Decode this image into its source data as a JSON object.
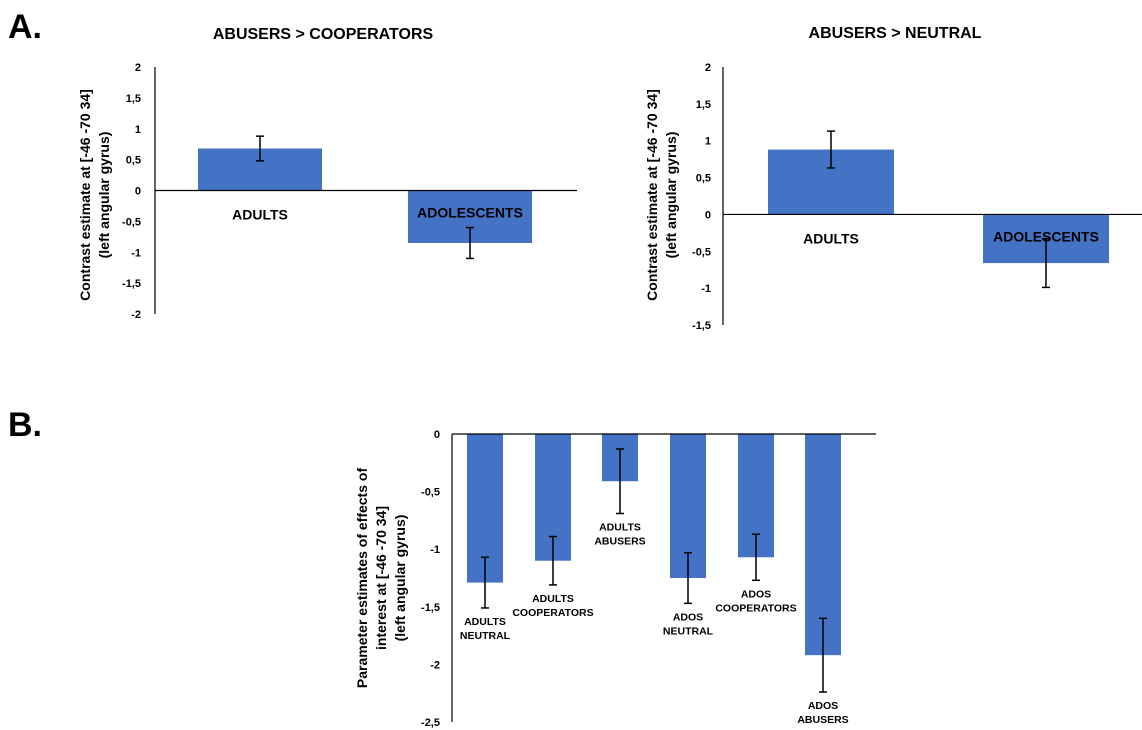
{
  "panel_labels": [
    "A.",
    "B."
  ],
  "colors": {
    "bar": "#4472C4",
    "axis": "#000000",
    "error_bar": "#000000"
  },
  "chart_data": [
    {
      "type": "bar",
      "title": "ABUSERS > COOPERATORS",
      "ylabel": [
        "Contrast estimate at [-46 -70 34]",
        "(left angular gyrus)"
      ],
      "ylim": [
        -2,
        2
      ],
      "yticks": [
        "2",
        "1,5",
        "1",
        "0,5",
        "0",
        "-0,5",
        "-1",
        "-1,5",
        "-2"
      ],
      "categories": [
        "ADULTS",
        "ADOLESCENTS"
      ],
      "values": [
        0.68,
        -0.85
      ],
      "errors": [
        0.2,
        0.25
      ],
      "grid": false
    },
    {
      "type": "bar",
      "title": "ABUSERS > NEUTRAL",
      "ylabel": [
        "Contrast estimate at [-46 -70 34]",
        "(left angular gyrus)"
      ],
      "ylim": [
        -1.5,
        2
      ],
      "yticks": [
        "2",
        "1,5",
        "1",
        "0,5",
        "0",
        "-0,5",
        "-1",
        "-1,5"
      ],
      "categories": [
        "ADULTS",
        "ADOLESCENTS"
      ],
      "values": [
        0.88,
        -0.66
      ],
      "errors": [
        0.25,
        0.33
      ],
      "grid": false
    },
    {
      "type": "bar",
      "title": "",
      "ylabel": [
        "Parameter estimates of effects of",
        "interest at [-46 -70 34]",
        "(left angular gyrus)"
      ],
      "ylim": [
        -2.5,
        0
      ],
      "yticks": [
        "0",
        "-0,5",
        "-1",
        "-1,5",
        "-2",
        "-2,5"
      ],
      "categories": [
        [
          "ADULTS",
          "NEUTRAL"
        ],
        [
          "ADULTS",
          "COOPERATORS"
        ],
        [
          "ADULTS",
          "ABUSERS"
        ],
        [
          "ADOS",
          "NEUTRAL"
        ],
        [
          "ADOS",
          "COOPERATORS"
        ],
        [
          "ADOS",
          "ABUSERS"
        ]
      ],
      "values": [
        -1.29,
        -1.1,
        -0.41,
        -1.25,
        -1.07,
        -1.92
      ],
      "errors": [
        0.22,
        0.21,
        0.28,
        0.22,
        0.2,
        0.32
      ],
      "grid": false
    }
  ]
}
